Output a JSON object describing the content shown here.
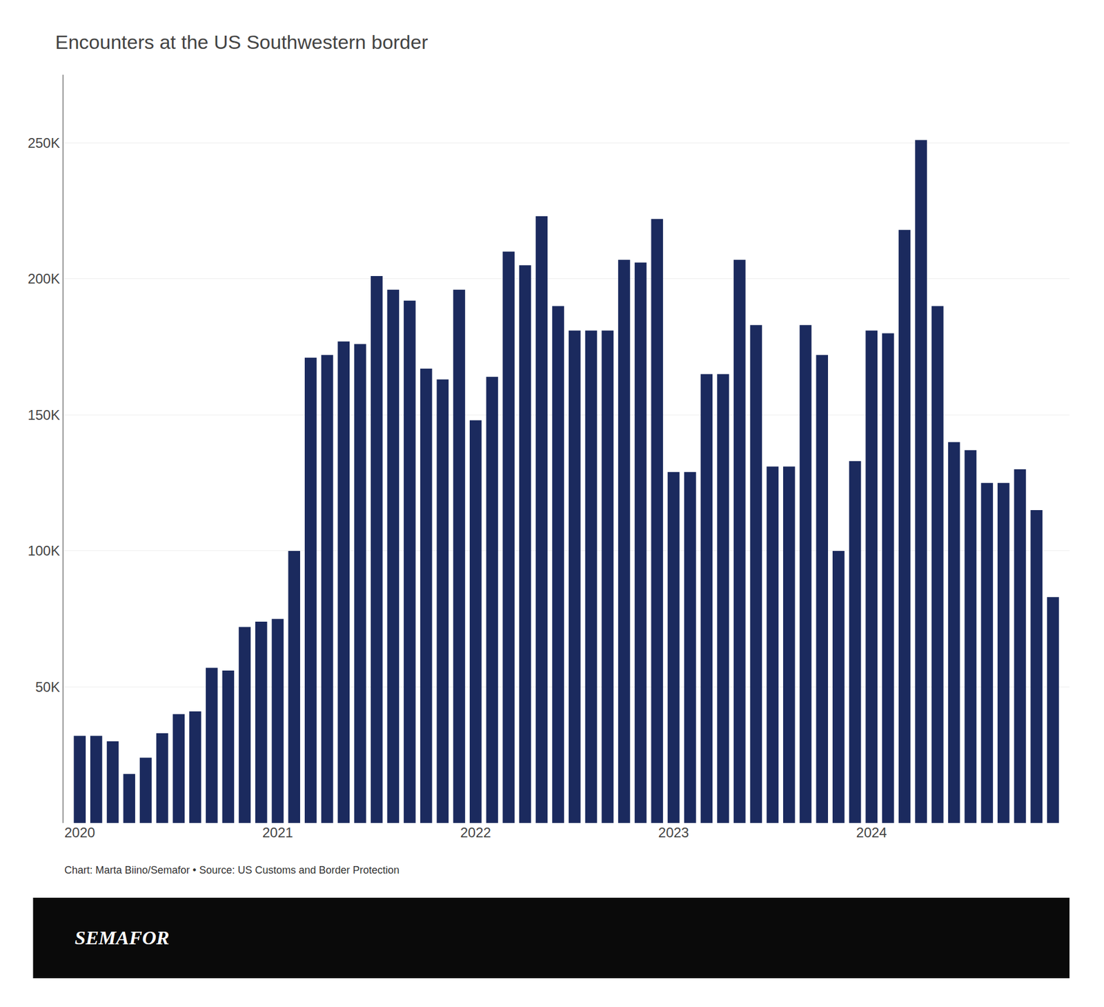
{
  "chart_data": {
    "type": "bar",
    "title": "Encounters at the US Southwestern border",
    "annotations": [
      "Chart: Marta Biino/Semafor • Source: US Customs and Border Protection",
      "SEMAFOR"
    ],
    "categories": [
      "2020",
      null,
      null,
      null,
      null,
      null,
      null,
      null,
      null,
      null,
      null,
      null,
      "2021",
      null,
      null,
      null,
      null,
      null,
      null,
      null,
      null,
      null,
      null,
      null,
      "2022",
      null,
      null,
      null,
      null,
      null,
      null,
      null,
      null,
      null,
      null,
      null,
      "2023",
      null,
      null,
      null,
      null,
      null,
      null,
      null,
      null,
      null,
      null,
      null,
      "2024",
      null,
      null,
      null,
      null,
      null,
      null,
      null,
      null,
      null,
      null,
      null
    ],
    "values": [
      32000,
      32000,
      30000,
      18000,
      24000,
      33000,
      40000,
      41000,
      57000,
      56000,
      72000,
      74000,
      75000,
      100000,
      171000,
      172000,
      177000,
      176000,
      201000,
      196000,
      192000,
      167000,
      163000,
      196000,
      148000,
      164000,
      210000,
      205000,
      223000,
      190000,
      181000,
      181000,
      181000,
      207000,
      206000,
      222000,
      129000,
      129000,
      165000,
      165000,
      207000,
      183000,
      131000,
      131000,
      183000,
      172000,
      100000,
      133000,
      181000,
      180000,
      218000,
      251000,
      190000,
      140000,
      137000,
      125000,
      125000,
      130000,
      115000,
      83000
    ],
    "color": "#1B2A5E",
    "ylim": [
      0,
      275000
    ],
    "yticks": [
      {
        "value": 50000,
        "label": "50K"
      },
      {
        "value": 100000,
        "label": "100K"
      },
      {
        "value": 150000,
        "label": "150K"
      },
      {
        "value": 200000,
        "label": "200K"
      },
      {
        "value": 250000,
        "label": "250K"
      }
    ],
    "grid": true
  }
}
